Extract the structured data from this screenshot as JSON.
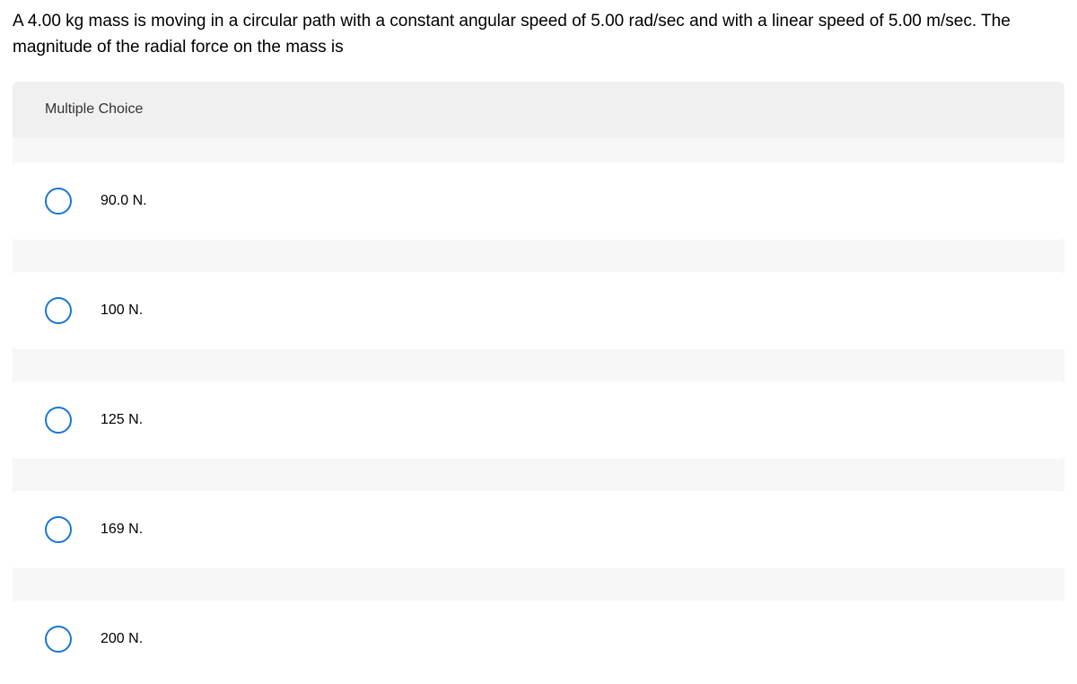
{
  "question": {
    "text": "A 4.00 kg mass is moving in a circular path with a constant angular speed of 5.00 rad/sec and with a linear speed of 5.00 m/sec. The magnitude of the radial force on the mass is"
  },
  "section_header": "Multiple Choice",
  "options": [
    {
      "label": "90.0 N."
    },
    {
      "label": "100 N."
    },
    {
      "label": "125 N."
    },
    {
      "label": "169 N."
    },
    {
      "label": "200 N."
    }
  ],
  "colors": {
    "radio_border": "#1976d2",
    "header_bg": "#f0f0f0",
    "options_bg": "#f7f7f7",
    "option_row_bg": "#ffffff",
    "text": "#000000"
  },
  "typography": {
    "question_fontsize": 19,
    "header_fontsize": 16,
    "option_fontsize": 16
  }
}
